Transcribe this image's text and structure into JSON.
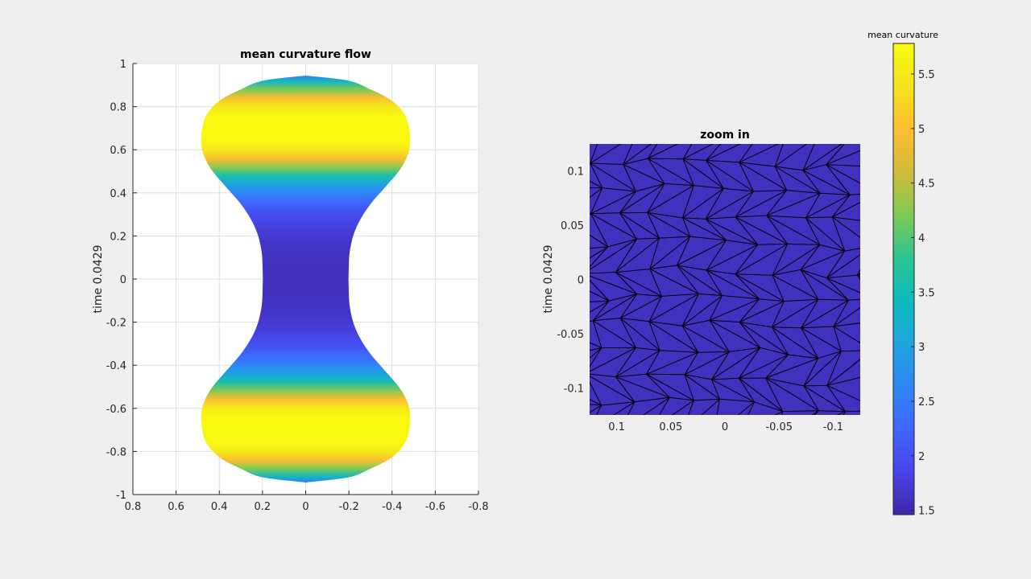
{
  "chart_data": [
    {
      "type": "surface",
      "title": "mean curvature flow",
      "xlabel": "",
      "ylabel": "time 0.0429",
      "xlim": [
        0.8,
        -0.8
      ],
      "ylim": [
        -1,
        1
      ],
      "x_reversed": true,
      "grid": true,
      "xticks": [
        0.8,
        0.6,
        0.4,
        0.2,
        0,
        -0.2,
        -0.4,
        -0.6,
        -0.8
      ],
      "xtick_labels": [
        "0.8",
        "0.6",
        "0.4",
        "0.2",
        "0",
        "-0.2",
        "-0.4",
        "-0.6",
        "-0.8"
      ],
      "yticks": [
        1,
        0.8,
        0.6,
        0.4,
        0.2,
        0,
        -0.2,
        -0.4,
        -0.6,
        -0.8,
        -1
      ],
      "ytick_labels": [
        "1",
        "0.8",
        "0.6",
        "0.4",
        "0.2",
        "0",
        "-0.2",
        "-0.4",
        "-0.6",
        "-0.8",
        "-1"
      ],
      "profile": {
        "z": [
          0.944,
          0.92,
          0.88,
          0.84,
          0.8,
          0.76,
          0.72,
          0.68,
          0.64,
          0.6,
          0.56,
          0.52,
          0.48,
          0.44,
          0.4,
          0.36,
          0.32,
          0.28,
          0.24,
          0.2,
          0.16,
          0.12,
          0.08,
          0.04,
          0.0
        ],
        "radius": [
          0.0,
          0.2,
          0.3,
          0.38,
          0.43,
          0.46,
          0.475,
          0.482,
          0.484,
          0.48,
          0.466,
          0.445,
          0.415,
          0.38,
          0.345,
          0.31,
          0.28,
          0.255,
          0.235,
          0.22,
          0.21,
          0.203,
          0.2,
          0.199,
          0.198
        ],
        "mean_curvature": [
          2.5,
          3.3,
          4.2,
          5.0,
          5.5,
          5.7,
          5.75,
          5.75,
          5.7,
          5.5,
          5.0,
          4.3,
          3.6,
          3.0,
          2.6,
          2.3,
          2.05,
          1.9,
          1.8,
          1.72,
          1.66,
          1.62,
          1.6,
          1.58,
          1.57
        ]
      }
    },
    {
      "type": "mesh",
      "title": "zoom in",
      "xlabel": "",
      "ylabel": "time 0.0429",
      "xlim": [
        0.125,
        -0.125
      ],
      "ylim": [
        -0.125,
        0.125
      ],
      "x_reversed": true,
      "grid": false,
      "xticks": [
        0.1,
        0.05,
        0,
        -0.05,
        -0.1
      ],
      "xtick_labels": [
        "0.1",
        "0.05",
        "0",
        "-0.05",
        "-0.1"
      ],
      "yticks": [
        0.1,
        0.05,
        0,
        -0.05,
        -0.1
      ],
      "ytick_labels": [
        "0.1",
        "0.05",
        "0",
        "-0.05",
        "-0.1"
      ],
      "face_value": 1.6,
      "edge_color": "#000000"
    }
  ],
  "colorbar": {
    "label": "mean curvature",
    "limits": [
      1.46,
      5.78
    ],
    "ticks": [
      1.5,
      2,
      2.5,
      3,
      3.5,
      4,
      4.5,
      5,
      5.5
    ],
    "tick_labels": [
      "1.5",
      "2",
      "2.5",
      "3",
      "3.5",
      "4",
      "4.5",
      "5",
      "5.5"
    ],
    "colormap": "parula",
    "colormap_stops": [
      "#3e26a8",
      "#4744e8",
      "#4066fe",
      "#2e87f7",
      "#1da5df",
      "#0bbbbc",
      "#2cc590",
      "#7dca55",
      "#d3bb39",
      "#fcbf30",
      "#f4e21e",
      "#f9fb0e"
    ]
  },
  "colors": {
    "background": "#efefef",
    "axes_background": "#ffffff",
    "grid": "#dfdfdf",
    "axis": "#262626"
  }
}
